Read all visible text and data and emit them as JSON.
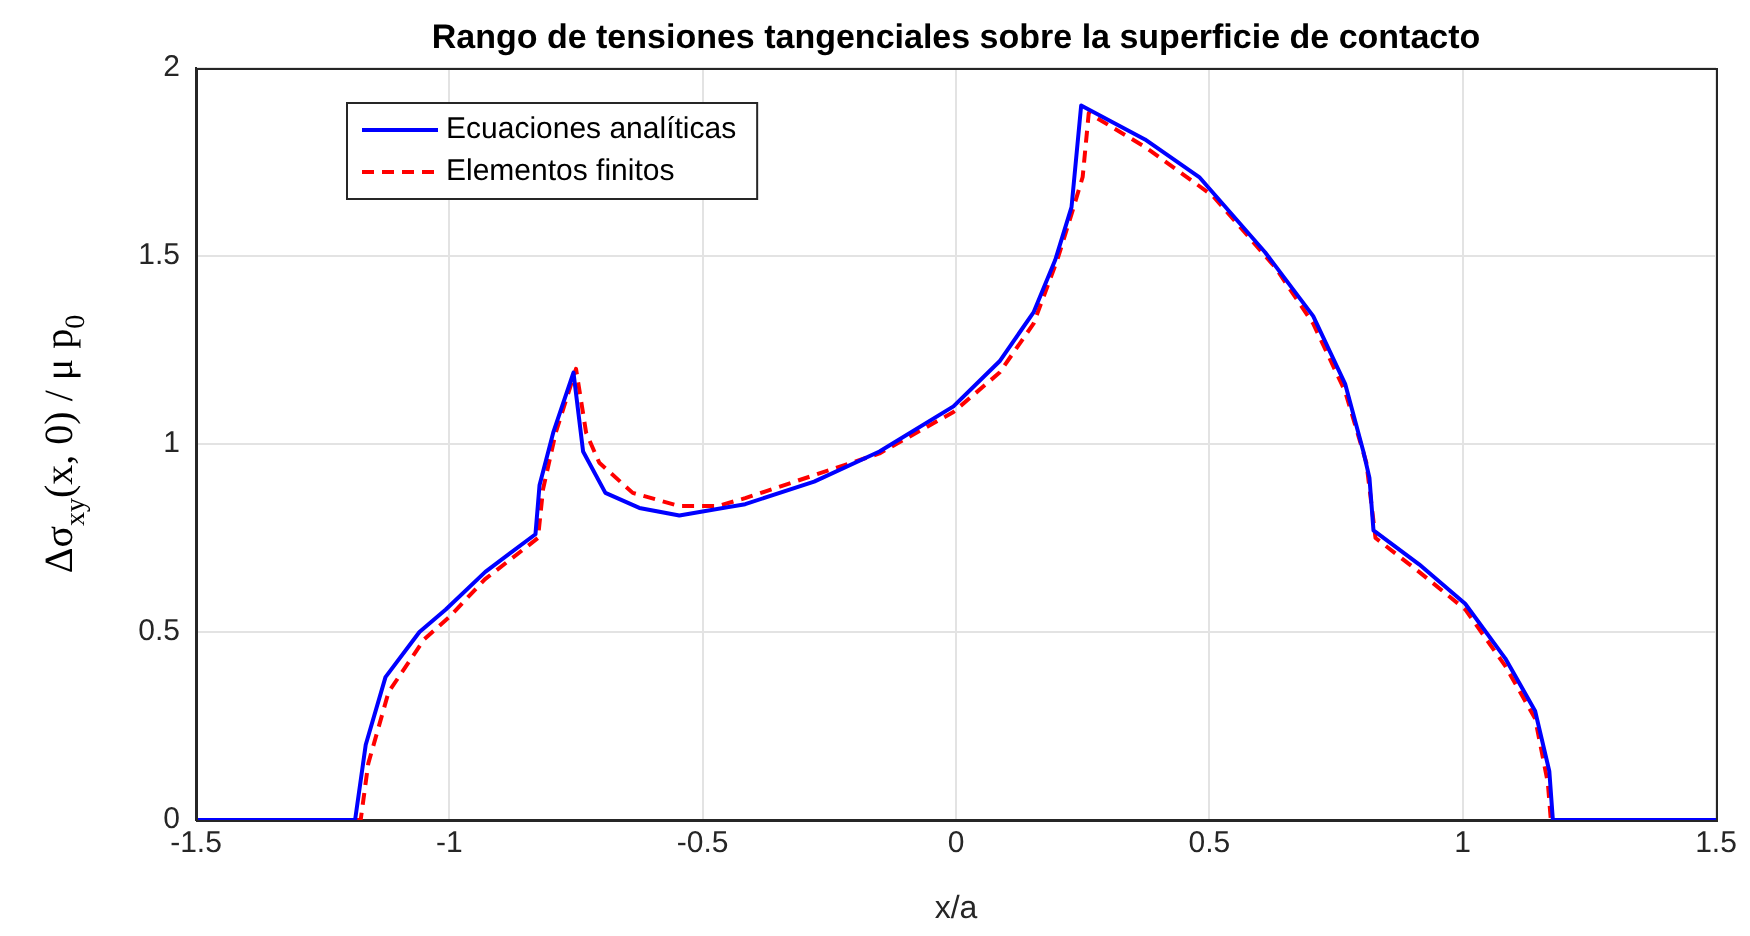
{
  "chart_data": {
    "type": "line",
    "title": "Rango de tensiones tangenciales sobre la superficie de contacto",
    "xlabel": "x/a",
    "ylabel": "Δσ$_{xy}$(x, 0) / μ p$_{0}$",
    "xlim": [
      -1.5,
      1.5
    ],
    "xticks": [
      -1.5,
      -1,
      -0.5,
      0,
      0.5,
      1,
      1.5
    ],
    "ylim": [
      0,
      2
    ],
    "yticks": [
      0,
      0.5,
      1,
      1.5,
      2
    ],
    "grid": true,
    "legend": "top left",
    "marker": "none",
    "series": [
      {
        "name": "Ecuaciones analíticas",
        "color": "#0000ff",
        "line_style": "solid",
        "x": [
          -1.5,
          -1.186,
          -1.165,
          -1.126,
          -1.059,
          -1.007,
          -0.929,
          -0.83,
          -0.822,
          -0.795,
          -0.755,
          -0.736,
          -0.692,
          -0.625,
          -0.546,
          -0.416,
          -0.28,
          -0.151,
          -0.005,
          0.086,
          0.153,
          0.196,
          0.228,
          0.247,
          0.373,
          0.48,
          0.61,
          0.705,
          0.768,
          0.804,
          0.816,
          0.824,
          0.914,
          1.005,
          1.084,
          1.143,
          1.171,
          1.178,
          1.5
        ],
        "values": [
          0,
          0,
          0.2,
          0.38,
          0.5,
          0.56,
          0.66,
          0.76,
          0.89,
          1.03,
          1.19,
          0.98,
          0.87,
          0.83,
          0.81,
          0.84,
          0.9,
          0.98,
          1.1,
          1.22,
          1.35,
          1.49,
          1.63,
          1.9,
          1.81,
          1.71,
          1.51,
          1.34,
          1.16,
          0.98,
          0.91,
          0.77,
          0.68,
          0.575,
          0.43,
          0.29,
          0.13,
          0,
          0
        ]
      },
      {
        "name": "Elementos finitos",
        "color": "#ff0000",
        "line_style": "dashed",
        "x": [
          -1.5,
          -1.175,
          -1.16,
          -1.12,
          -1.05,
          -1.0,
          -0.93,
          -0.825,
          -0.815,
          -0.79,
          -0.75,
          -0.73,
          -0.704,
          -0.638,
          -0.546,
          -0.47,
          -0.416,
          -0.151,
          -0.005,
          0.086,
          0.153,
          0.2,
          0.23,
          0.25,
          0.262,
          0.373,
          0.507,
          0.63,
          0.705,
          0.768,
          0.81,
          0.828,
          0.914,
          1.005,
          1.084,
          1.143,
          1.168,
          1.174,
          1.5
        ],
        "values": [
          0,
          0,
          0.15,
          0.34,
          0.48,
          0.54,
          0.64,
          0.75,
          0.88,
          1.03,
          1.2,
          1.03,
          0.95,
          0.87,
          0.835,
          0.835,
          0.856,
          0.975,
          1.085,
          1.19,
          1.32,
          1.49,
          1.62,
          1.71,
          1.88,
          1.79,
          1.66,
          1.47,
          1.32,
          1.14,
          0.95,
          0.75,
          0.66,
          0.56,
          0.41,
          0.27,
          0.1,
          0,
          0
        ]
      }
    ]
  }
}
